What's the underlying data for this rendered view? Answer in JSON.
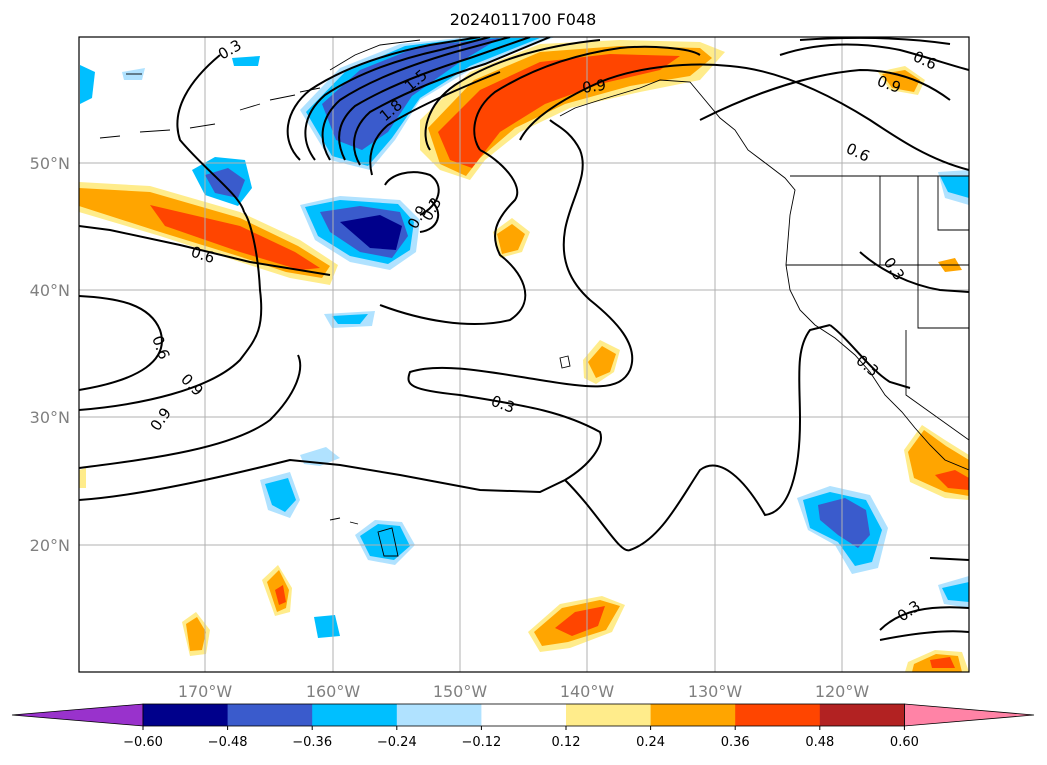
{
  "title": "2024011700 F048",
  "lat_labels": [
    "50°N",
    "40°N",
    "30°N",
    "20°N"
  ],
  "lon_labels": [
    "170°W",
    "160°W",
    "150°W",
    "140°W",
    "130°W",
    "120°W"
  ],
  "contour_labels": [
    "0.3",
    "0.6",
    "0.9",
    "1.5",
    "1.8",
    "0.6",
    "0.9",
    "0.9",
    "0.6",
    "0.3",
    "0.3",
    "0.3",
    "0.3",
    "0.6",
    "0.9",
    "0.9",
    "0.3"
  ],
  "colorbar": {
    "tick_labels": [
      "−0.60",
      "−0.48",
      "−0.36",
      "−0.24",
      "−0.12",
      "0.12",
      "0.24",
      "0.36",
      "0.48",
      "0.60"
    ],
    "colors": [
      "#9932cc",
      "#00008b",
      "#3a5bcc",
      "#00bfff",
      "#b0e2ff",
      "#ffffff",
      "#ffec8b",
      "#ffa500",
      "#ff4500",
      "#b22222",
      "#ff83a6"
    ]
  },
  "colors": {
    "pos_1": "#ffec8b",
    "pos_2": "#ffa500",
    "pos_3": "#ff4500",
    "neg_1": "#b0e2ff",
    "neg_2": "#00bfff",
    "neg_3": "#3a5bcc",
    "neg_4": "#00008b"
  }
}
